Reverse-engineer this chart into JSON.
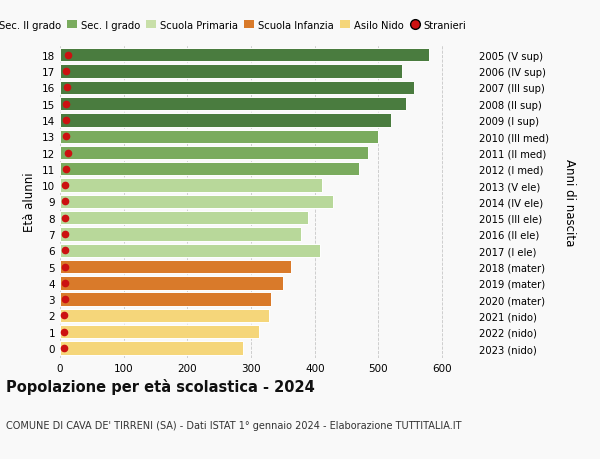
{
  "ages": [
    18,
    17,
    16,
    15,
    14,
    13,
    12,
    11,
    10,
    9,
    8,
    7,
    6,
    5,
    4,
    3,
    2,
    1,
    0
  ],
  "values": [
    580,
    537,
    556,
    543,
    519,
    499,
    484,
    469,
    412,
    428,
    390,
    378,
    408,
    363,
    350,
    332,
    328,
    312,
    287
  ],
  "stranieri": [
    12,
    10,
    11,
    10,
    10,
    10,
    12,
    10,
    8,
    8,
    8,
    8,
    8,
    8,
    8,
    8,
    7,
    7,
    7
  ],
  "right_labels": [
    "2005 (V sup)",
    "2006 (IV sup)",
    "2007 (III sup)",
    "2008 (II sup)",
    "2009 (I sup)",
    "2010 (III med)",
    "2011 (II med)",
    "2012 (I med)",
    "2013 (V ele)",
    "2014 (IV ele)",
    "2015 (III ele)",
    "2016 (II ele)",
    "2017 (I ele)",
    "2018 (mater)",
    "2019 (mater)",
    "2020 (mater)",
    "2021 (nido)",
    "2022 (nido)",
    "2023 (nido)"
  ],
  "bar_colors": [
    "#4a7c3f",
    "#4a7c3f",
    "#4a7c3f",
    "#4a7c3f",
    "#4a7c3f",
    "#7aab5e",
    "#7aab5e",
    "#7aab5e",
    "#b8d89a",
    "#b8d89a",
    "#b8d89a",
    "#b8d89a",
    "#b8d89a",
    "#d97a2a",
    "#d97a2a",
    "#d97a2a",
    "#f5d67a",
    "#f5d67a",
    "#f5d67a"
  ],
  "legend_labels": [
    "Sec. II grado",
    "Sec. I grado",
    "Scuola Primaria",
    "Scuola Infanzia",
    "Asilo Nido",
    "Stranieri"
  ],
  "legend_colors": [
    "#4a7c3f",
    "#7aab5e",
    "#c8dfa8",
    "#d97a2a",
    "#f5d67a",
    "#cc1111"
  ],
  "stranieri_color": "#cc1111",
  "title": "Popolazione per età scolastica - 2024",
  "subtitle": "COMUNE DI CAVA DE' TIRRENI (SA) - Dati ISTAT 1° gennaio 2024 - Elaborazione TUTTITALIA.IT",
  "ylabel": "Età alunni",
  "right_ylabel": "Anni di nascita",
  "xlabel_ticks": [
    0,
    100,
    200,
    300,
    400,
    500,
    600
  ],
  "xlim": [
    0,
    650
  ],
  "background_color": "#f9f9f9"
}
